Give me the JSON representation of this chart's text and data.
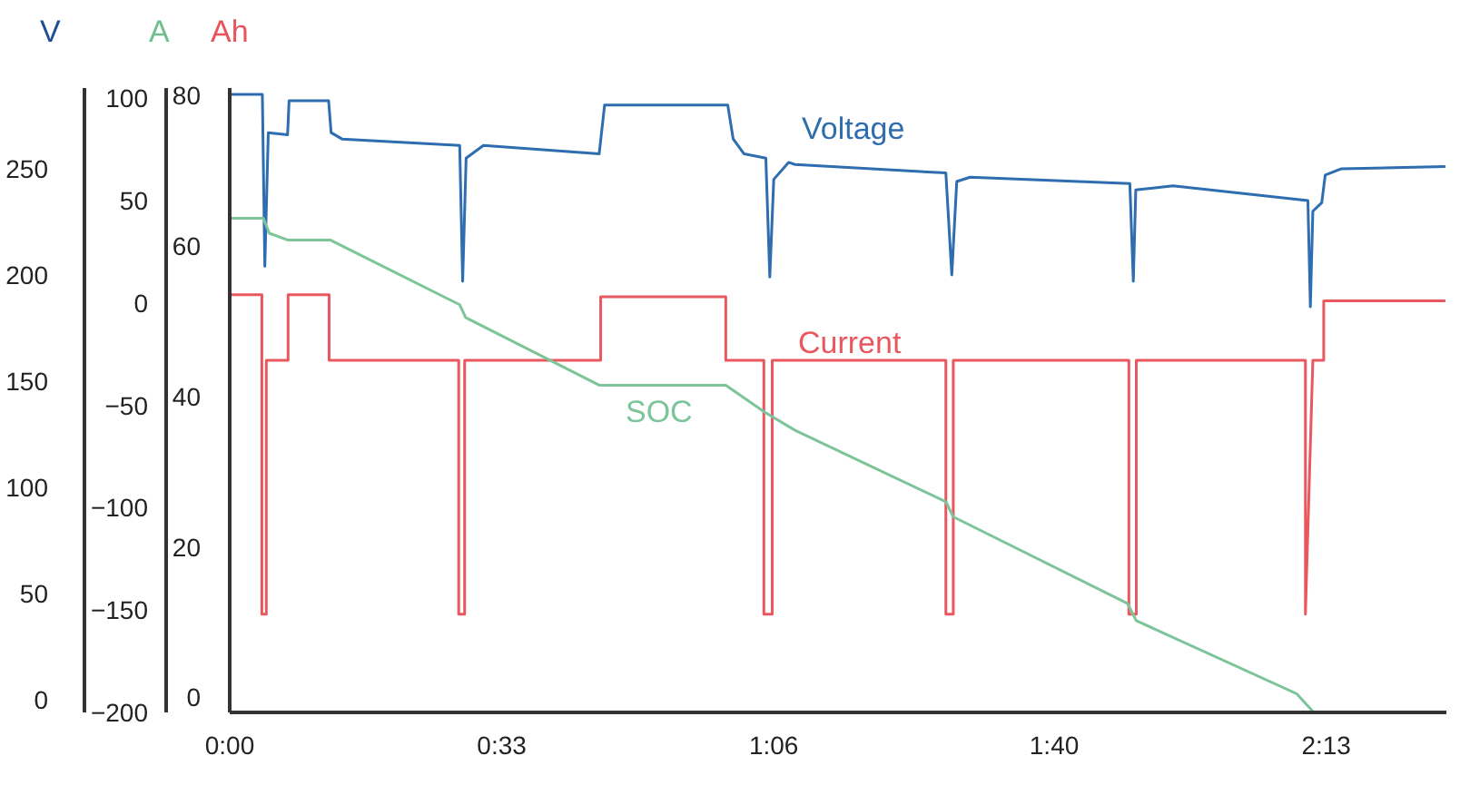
{
  "chart_data": {
    "type": "line",
    "ylabel": "V",
    "y2label": "A",
    "y3label": "Ah",
    "grid": false,
    "marker": "none",
    "line_style": "solid",
    "xlim": [
      0,
      2.46
    ],
    "xticks": [
      {
        "value": 0,
        "label": "0:00"
      },
      {
        "value": 0.55,
        "label": "0:33"
      },
      {
        "value": 1.1,
        "label": "1:06"
      },
      {
        "value": 1.667,
        "label": "1:40"
      },
      {
        "value": 2.217,
        "label": "2:13"
      }
    ],
    "ylim": [
      -6,
      288
    ],
    "yticks": [
      0,
      50,
      100,
      150,
      200,
      250
    ],
    "y2lim": [
      -200,
      105
    ],
    "y2ticks": [
      -200,
      -150,
      -100,
      -50,
      0,
      50,
      100
    ],
    "y3lim": [
      -2,
      81
    ],
    "y3ticks": [
      0,
      20,
      40,
      60,
      80
    ],
    "series": [
      {
        "name": "Voltage",
        "color": "#2e6db0",
        "axis": "y",
        "x": [
          0,
          0.066,
          0.071,
          0.078,
          0.117,
          0.12,
          0.2,
          0.205,
          0.227,
          0.465,
          0.471,
          0.478,
          0.513,
          0.747,
          0.758,
          1.007,
          1.018,
          1.04,
          1.084,
          1.092,
          1.1,
          1.13,
          1.143,
          1.448,
          1.46,
          1.47,
          1.497,
          1.82,
          1.827,
          1.832,
          1.907,
          2.18,
          2.185,
          2.19,
          2.208,
          2.215,
          2.248,
          2.458
        ],
        "values": [
          285,
          285,
          204,
          267,
          266,
          282,
          282,
          267,
          264,
          261,
          197,
          255,
          261,
          257,
          280,
          280,
          264,
          257,
          255,
          199,
          245,
          253,
          252,
          248,
          200,
          244,
          246,
          243,
          197,
          240,
          242,
          235,
          185,
          230,
          234,
          247,
          250,
          251
        ]
      },
      {
        "name": "Current",
        "color": "#e8585e",
        "axis": "y2",
        "x": [
          0,
          0.065,
          0.065,
          0.074,
          0.074,
          0.118,
          0.118,
          0.201,
          0.201,
          0.463,
          0.463,
          0.475,
          0.475,
          0.75,
          0.75,
          1.003,
          1.003,
          1.08,
          1.08,
          1.097,
          1.097,
          1.448,
          1.448,
          1.463,
          1.463,
          1.818,
          1.818,
          1.833,
          1.833,
          2.175,
          2.175,
          2.19,
          2.212,
          2.212,
          2.458
        ],
        "values": [
          4,
          4,
          -152,
          -152,
          -28,
          -28,
          4,
          4,
          -28,
          -28,
          -152,
          -152,
          -28,
          -28,
          3,
          3,
          -28,
          -28,
          -152,
          -152,
          -28,
          -28,
          -152,
          -152,
          -28,
          -28,
          -152,
          -152,
          -28,
          -28,
          -152,
          -28,
          -28,
          1,
          1
        ]
      },
      {
        "name": "SOC",
        "color": "#7cc49a",
        "axis": "y3",
        "x": [
          0,
          0.068,
          0.08,
          0.117,
          0.203,
          0.465,
          0.477,
          0.747,
          1.003,
          1.082,
          1.143,
          1.448,
          1.463,
          1.815,
          1.833,
          2.157,
          2.192
        ],
        "values": [
          63.7,
          63.7,
          61.7,
          60.8,
          60.8,
          52.2,
          50.5,
          41.5,
          41.5,
          37.9,
          35.5,
          26,
          24,
          12.5,
          10.2,
          0.5,
          -2
        ]
      }
    ]
  }
}
